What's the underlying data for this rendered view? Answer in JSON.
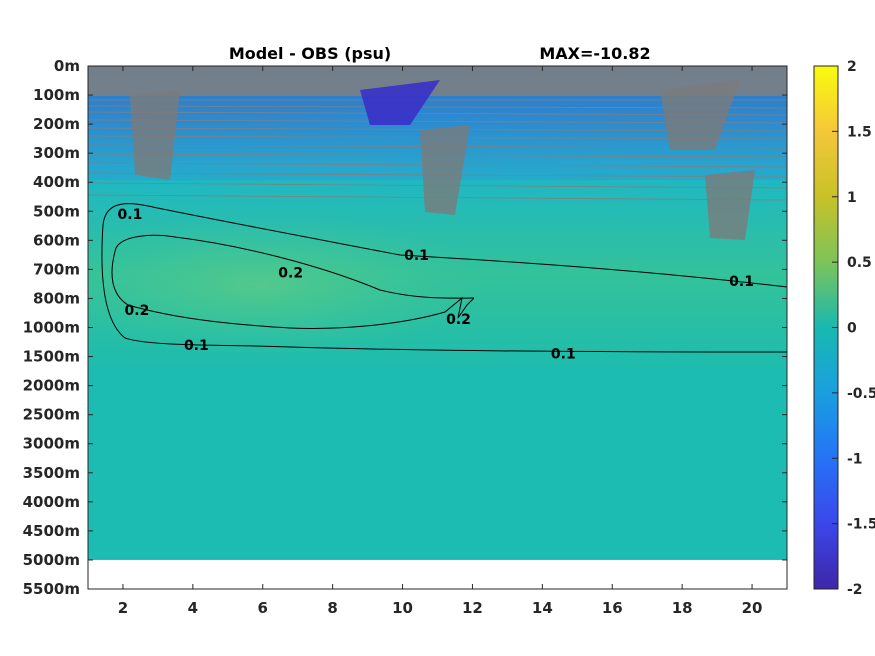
{
  "title": {
    "left": "Model - OBS (psu)",
    "right": "MAX=-10.82"
  },
  "colors": {
    "background_field": "#1cbcae",
    "anomaly_positive": "#3fc58f",
    "near_surface_negative": "#3b3fd8",
    "contour_gray": "#808080",
    "contour_black": "#000000"
  },
  "chart_data": {
    "type": "heatmap",
    "title": "Model - OBS (psu)",
    "annotation": "MAX=-10.82",
    "xlabel": "",
    "ylabel": "",
    "x_ticks": [
      "2",
      "4",
      "6",
      "8",
      "10",
      "12",
      "14",
      "16",
      "18",
      "20"
    ],
    "xlim": [
      1,
      21
    ],
    "y_ticks": [
      "0m",
      "100m",
      "200m",
      "300m",
      "400m",
      "500m",
      "600m",
      "700m",
      "800m",
      "1000m",
      "1500m",
      "2000m",
      "2500m",
      "3000m",
      "3500m",
      "4000m",
      "4500m",
      "5000m",
      "5500m"
    ],
    "y_reversed": true,
    "data_bottom_depth": "5000m",
    "colorbar": {
      "ticks": [
        "2",
        "1.5",
        "1",
        "0.5",
        "0",
        "-0.5",
        "-1",
        "-1.5",
        "-2"
      ],
      "range": [
        -2,
        2
      ],
      "colormap": "parula"
    },
    "contour_labels": [
      {
        "text": "0.1",
        "x": 2.2,
        "depth_index": 5.1
      },
      {
        "text": "0.2",
        "x": 6.8,
        "depth_index": 7.1
      },
      {
        "text": "0.2",
        "x": 2.4,
        "depth_index": 8.4
      },
      {
        "text": "0.2",
        "x": 11.6,
        "depth_index": 8.7
      },
      {
        "text": "0.1",
        "x": 4.1,
        "depth_index": 9.6
      },
      {
        "text": "0.1",
        "x": 14.6,
        "depth_index": 9.9
      },
      {
        "text": "0.1",
        "x": 10.4,
        "depth_index": 6.5
      },
      {
        "text": "0.1",
        "x": 19.7,
        "depth_index": 7.4
      }
    ],
    "grid": false,
    "legend": "colorbar-right"
  }
}
